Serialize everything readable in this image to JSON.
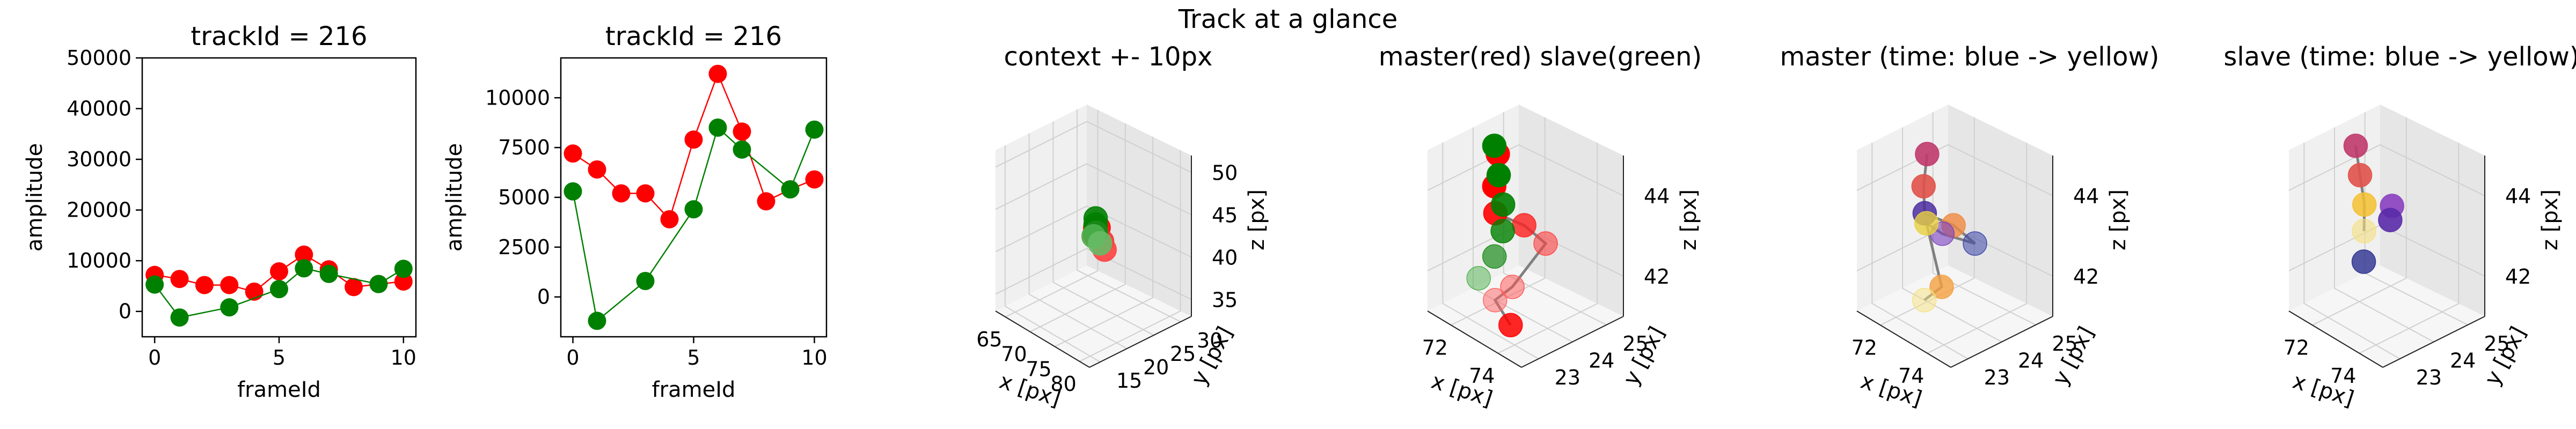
{
  "figure": {
    "suptitle": "Track at a glance"
  },
  "chart_data": [
    {
      "type": "line",
      "title": "trackId = 216",
      "xlabel": "frameId",
      "ylabel": "amplitude",
      "xlim": [
        -0.5,
        10.5
      ],
      "ylim": [
        -5000,
        50000
      ],
      "xticks": [
        "0",
        "5",
        "10"
      ],
      "yticks": [
        "0",
        "10000",
        "20000",
        "30000",
        "40000",
        "50000"
      ],
      "grid": false,
      "legend": "none",
      "colors": [
        "#ff0000",
        "#008000"
      ],
      "series": [
        {
          "x": [
            0,
            1,
            2,
            3,
            4,
            5,
            6,
            7,
            8,
            9,
            10
          ],
          "values": [
            7200,
            6400,
            5200,
            5200,
            3900,
            7900,
            11200,
            8300,
            4800,
            5400,
            5900
          ]
        },
        {
          "x": [
            0,
            1,
            3,
            5,
            6,
            7,
            9,
            10
          ],
          "values": [
            5300,
            -1200,
            800,
            4400,
            8500,
            7400,
            5400,
            8400
          ]
        }
      ]
    },
    {
      "type": "line",
      "title": "trackId = 216",
      "xlabel": "frameId",
      "ylabel": "amplitude",
      "xlim": [
        -0.5,
        10.5
      ],
      "ylim": [
        -2000,
        12000
      ],
      "xticks": [
        "0",
        "5",
        "10"
      ],
      "yticks": [
        "0",
        "2500",
        "5000",
        "7500",
        "10000"
      ],
      "grid": false,
      "legend": "none",
      "colors": [
        "#ff0000",
        "#008000"
      ],
      "series": [
        {
          "x": [
            0,
            1,
            2,
            3,
            4,
            5,
            6,
            7,
            8,
            9,
            10
          ],
          "values": [
            7200,
            6400,
            5200,
            5200,
            3900,
            7900,
            11200,
            8300,
            4800,
            5400,
            5900
          ]
        },
        {
          "x": [
            0,
            1,
            3,
            5,
            6,
            7,
            9,
            10
          ],
          "values": [
            5300,
            -1200,
            800,
            4400,
            8500,
            7400,
            5400,
            8400
          ]
        }
      ]
    },
    {
      "type": "scatter",
      "title": "context +- 10px",
      "xlabel": "x [px]",
      "ylabel": "y [px]",
      "zlabel": "z [px]",
      "xlim": [
        63,
        82
      ],
      "ylim": [
        13,
        32
      ],
      "zlim": [
        33,
        52
      ],
      "xticks": [
        "65",
        "70",
        "75",
        "80"
      ],
      "yticks": [
        "15",
        "20",
        "25",
        "30"
      ],
      "zticks": [
        "35",
        "40",
        "45",
        "50"
      ],
      "grid": true,
      "points": [
        {
          "x": 73.0,
          "y": 22.8,
          "z": 42.5,
          "c": "#ff0000"
        },
        {
          "x": 73.5,
          "y": 23.0,
          "z": 43.5,
          "c": "#ff0000"
        },
        {
          "x": 74.0,
          "y": 23.2,
          "z": 42.0,
          "c": "#ff3030"
        },
        {
          "x": 74.2,
          "y": 23.5,
          "z": 41.0,
          "c": "#ff4040"
        },
        {
          "x": 72.5,
          "y": 23.3,
          "z": 43.0,
          "c": "#ff2020"
        },
        {
          "x": 72.3,
          "y": 23.6,
          "z": 44.0,
          "c": "#008000"
        },
        {
          "x": 72.8,
          "y": 23.1,
          "z": 43.6,
          "c": "#008000"
        },
        {
          "x": 73.1,
          "y": 22.9,
          "z": 42.8,
          "c": "#1a8a1a"
        },
        {
          "x": 72.6,
          "y": 22.9,
          "z": 42.2,
          "c": "#4caf4c"
        },
        {
          "x": 73.4,
          "y": 23.4,
          "z": 41.5,
          "c": "#66bb66"
        }
      ]
    },
    {
      "type": "scatter",
      "title": "master(red) slave(green)",
      "xlabel": "x [px]",
      "ylabel": "y [px]",
      "zlabel": "z [px]",
      "xlim": [
        71,
        75
      ],
      "ylim": [
        22.5,
        25.5
      ],
      "zlim": [
        41,
        45
      ],
      "xticks": [
        "72",
        "74"
      ],
      "yticks": [
        "23",
        "24",
        "25"
      ],
      "zticks": [
        "42",
        "44"
      ],
      "grid": true,
      "line_color": "#808080",
      "points": [
        {
          "x": 72.2,
          "y": 23.8,
          "z": 44.8,
          "c": "#ff0000",
          "o": 1.0
        },
        {
          "x": 72.6,
          "y": 23.4,
          "z": 44.3,
          "c": "#ff0000",
          "o": 1.0
        },
        {
          "x": 73.2,
          "y": 23.0,
          "z": 44.0,
          "c": "#ff0000",
          "o": 0.9
        },
        {
          "x": 73.6,
          "y": 23.6,
          "z": 43.6,
          "c": "#ff2020",
          "o": 0.8
        },
        {
          "x": 74.1,
          "y": 23.9,
          "z": 43.2,
          "c": "#ff4040",
          "o": 0.6
        },
        {
          "x": 74.2,
          "y": 22.8,
          "z": 42.6,
          "c": "#ff5050",
          "o": 0.5
        },
        {
          "x": 73.6,
          "y": 22.7,
          "z": 42.1,
          "c": "#ff6060",
          "o": 0.5
        },
        {
          "x": 74.4,
          "y": 22.6,
          "z": 41.8,
          "c": "#ff0000",
          "o": 0.85
        },
        {
          "x": 71.5,
          "y": 24.2,
          "z": 44.6,
          "c": "#008000",
          "o": 1.0
        },
        {
          "x": 72.1,
          "y": 23.9,
          "z": 44.2,
          "c": "#008000",
          "o": 1.0
        },
        {
          "x": 72.7,
          "y": 23.6,
          "z": 43.8,
          "c": "#008000",
          "o": 0.9
        },
        {
          "x": 73.1,
          "y": 23.3,
          "z": 43.4,
          "c": "#008000",
          "o": 0.8
        },
        {
          "x": 73.3,
          "y": 22.9,
          "z": 43.0,
          "c": "#1a8a1a",
          "o": 0.7
        },
        {
          "x": 72.9,
          "y": 22.7,
          "z": 42.4,
          "c": "#4caf4c",
          "o": 0.5
        }
      ],
      "path": [
        0,
        1,
        2,
        3,
        4,
        5,
        6,
        7
      ]
    },
    {
      "type": "scatter",
      "title": "master (time: blue -> yellow)",
      "xlabel": "x [px]",
      "ylabel": "y [px]",
      "zlabel": "z [px]",
      "xlim": [
        71,
        75
      ],
      "ylim": [
        22.5,
        25.5
      ],
      "zlim": [
        41,
        45
      ],
      "xticks": [
        "72",
        "74"
      ],
      "yticks": [
        "23",
        "24",
        "25"
      ],
      "zticks": [
        "42",
        "44"
      ],
      "grid": true,
      "line_color": "#808080",
      "points": [
        {
          "x": 72.2,
          "y": 23.8,
          "z": 44.8,
          "c": "#c0396b",
          "o": 0.9
        },
        {
          "x": 72.6,
          "y": 23.4,
          "z": 44.3,
          "c": "#e0524a",
          "o": 0.9
        },
        {
          "x": 73.2,
          "y": 23.0,
          "z": 44.0,
          "c": "#4b2ea0",
          "o": 0.85
        },
        {
          "x": 73.6,
          "y": 23.6,
          "z": 43.6,
          "c": "#f08a40",
          "o": 0.8
        },
        {
          "x": 74.1,
          "y": 23.9,
          "z": 43.2,
          "c": "#3a43a8",
          "o": 0.55
        },
        {
          "x": 73.4,
          "y": 23.4,
          "z": 43.4,
          "c": "#7a3fc0",
          "o": 0.6
        },
        {
          "x": 73.0,
          "y": 23.2,
          "z": 43.6,
          "c": "#e8d040",
          "o": 0.8
        },
        {
          "x": 74.2,
          "y": 22.8,
          "z": 42.6,
          "c": "#f5a040",
          "o": 0.8
        },
        {
          "x": 73.6,
          "y": 22.7,
          "z": 42.1,
          "c": "#f5e080",
          "o": 0.5
        }
      ],
      "path": [
        0,
        1,
        2,
        3,
        4,
        5,
        6,
        7,
        8
      ]
    },
    {
      "type": "scatter",
      "title": "slave (time: blue -> yellow)",
      "xlabel": "x [px]",
      "ylabel": "y [px]",
      "zlabel": "z [px]",
      "xlim": [
        71,
        75
      ],
      "ylim": [
        22.5,
        25.5
      ],
      "zlim": [
        41,
        45
      ],
      "xticks": [
        "72",
        "74"
      ],
      "yticks": [
        "23",
        "24",
        "25"
      ],
      "zticks": [
        "42",
        "44"
      ],
      "grid": true,
      "line_color": "#808080",
      "points": [
        {
          "x": 71.5,
          "y": 24.2,
          "z": 44.6,
          "c": "#c0396b",
          "o": 0.9
        },
        {
          "x": 72.1,
          "y": 23.9,
          "z": 44.2,
          "c": "#e0524a",
          "o": 0.9
        },
        {
          "x": 72.7,
          "y": 23.6,
          "z": 43.8,
          "c": "#f5c030",
          "o": 0.85
        },
        {
          "x": 73.1,
          "y": 23.3,
          "z": 43.4,
          "c": "#f5e080",
          "o": 0.6
        },
        {
          "x": 73.6,
          "y": 23.8,
          "z": 44.0,
          "c": "#8a3fc0",
          "o": 0.9
        },
        {
          "x": 73.8,
          "y": 23.6,
          "z": 43.8,
          "c": "#5a2aa8",
          "o": 0.9
        },
        {
          "x": 73.5,
          "y": 23.0,
          "z": 42.9,
          "c": "#2a3090",
          "o": 0.8
        }
      ],
      "path": [
        0,
        1,
        2,
        3
      ]
    }
  ]
}
